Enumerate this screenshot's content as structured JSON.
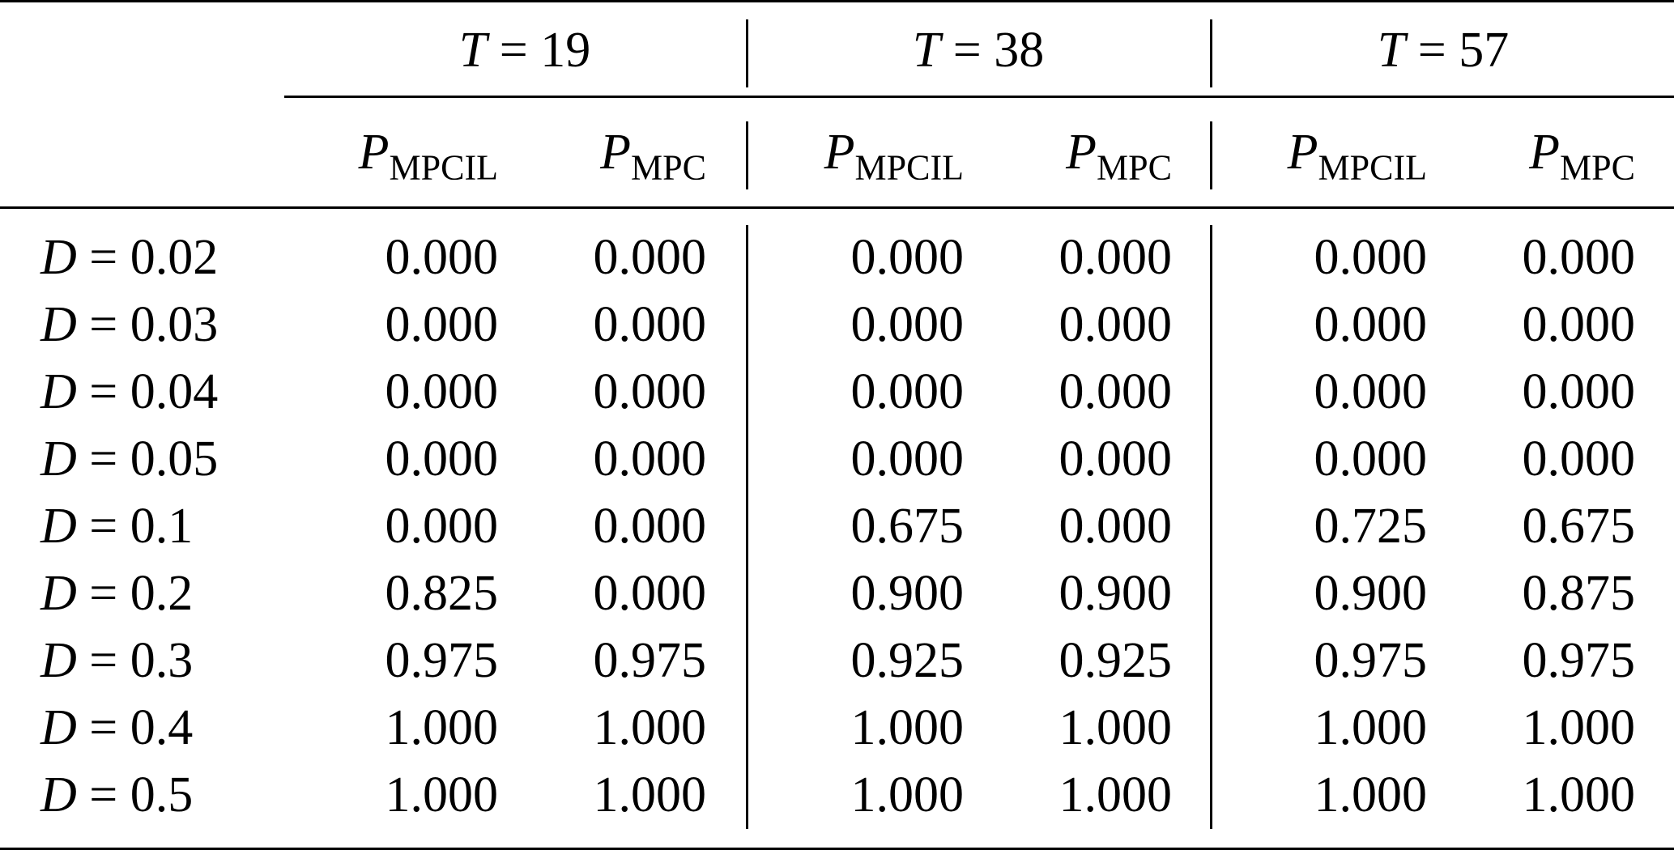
{
  "groups": [
    {
      "var": "T",
      "eq": "=",
      "value": "19"
    },
    {
      "var": "T",
      "eq": "=",
      "value": "38"
    },
    {
      "var": "T",
      "eq": "=",
      "value": "57"
    }
  ],
  "columns": [
    {
      "sym": "P",
      "sub": "MPCIL"
    },
    {
      "sym": "P",
      "sub": "MPC"
    },
    {
      "sym": "P",
      "sub": "MPCIL"
    },
    {
      "sym": "P",
      "sub": "MPC"
    },
    {
      "sym": "P",
      "sub": "MPCIL"
    },
    {
      "sym": "P",
      "sub": "MPC"
    }
  ],
  "rows": [
    {
      "var": "D",
      "eq": "=",
      "value": "0.02",
      "cells": [
        "0.000",
        "0.000",
        "0.000",
        "0.000",
        "0.000",
        "0.000"
      ]
    },
    {
      "var": "D",
      "eq": "=",
      "value": "0.03",
      "cells": [
        "0.000",
        "0.000",
        "0.000",
        "0.000",
        "0.000",
        "0.000"
      ]
    },
    {
      "var": "D",
      "eq": "=",
      "value": "0.04",
      "cells": [
        "0.000",
        "0.000",
        "0.000",
        "0.000",
        "0.000",
        "0.000"
      ]
    },
    {
      "var": "D",
      "eq": "=",
      "value": "0.05",
      "cells": [
        "0.000",
        "0.000",
        "0.000",
        "0.000",
        "0.000",
        "0.000"
      ]
    },
    {
      "var": "D",
      "eq": "=",
      "value": "0.1",
      "cells": [
        "0.000",
        "0.000",
        "0.675",
        "0.000",
        "0.725",
        "0.675"
      ]
    },
    {
      "var": "D",
      "eq": "=",
      "value": "0.2",
      "cells": [
        "0.825",
        "0.000",
        "0.900",
        "0.900",
        "0.900",
        "0.875"
      ]
    },
    {
      "var": "D",
      "eq": "=",
      "value": "0.3",
      "cells": [
        "0.975",
        "0.975",
        "0.925",
        "0.925",
        "0.975",
        "0.975"
      ]
    },
    {
      "var": "D",
      "eq": "=",
      "value": "0.4",
      "cells": [
        "1.000",
        "1.000",
        "1.000",
        "1.000",
        "1.000",
        "1.000"
      ]
    },
    {
      "var": "D",
      "eq": "=",
      "value": "0.5",
      "cells": [
        "1.000",
        "1.000",
        "1.000",
        "1.000",
        "1.000",
        "1.000"
      ]
    }
  ]
}
